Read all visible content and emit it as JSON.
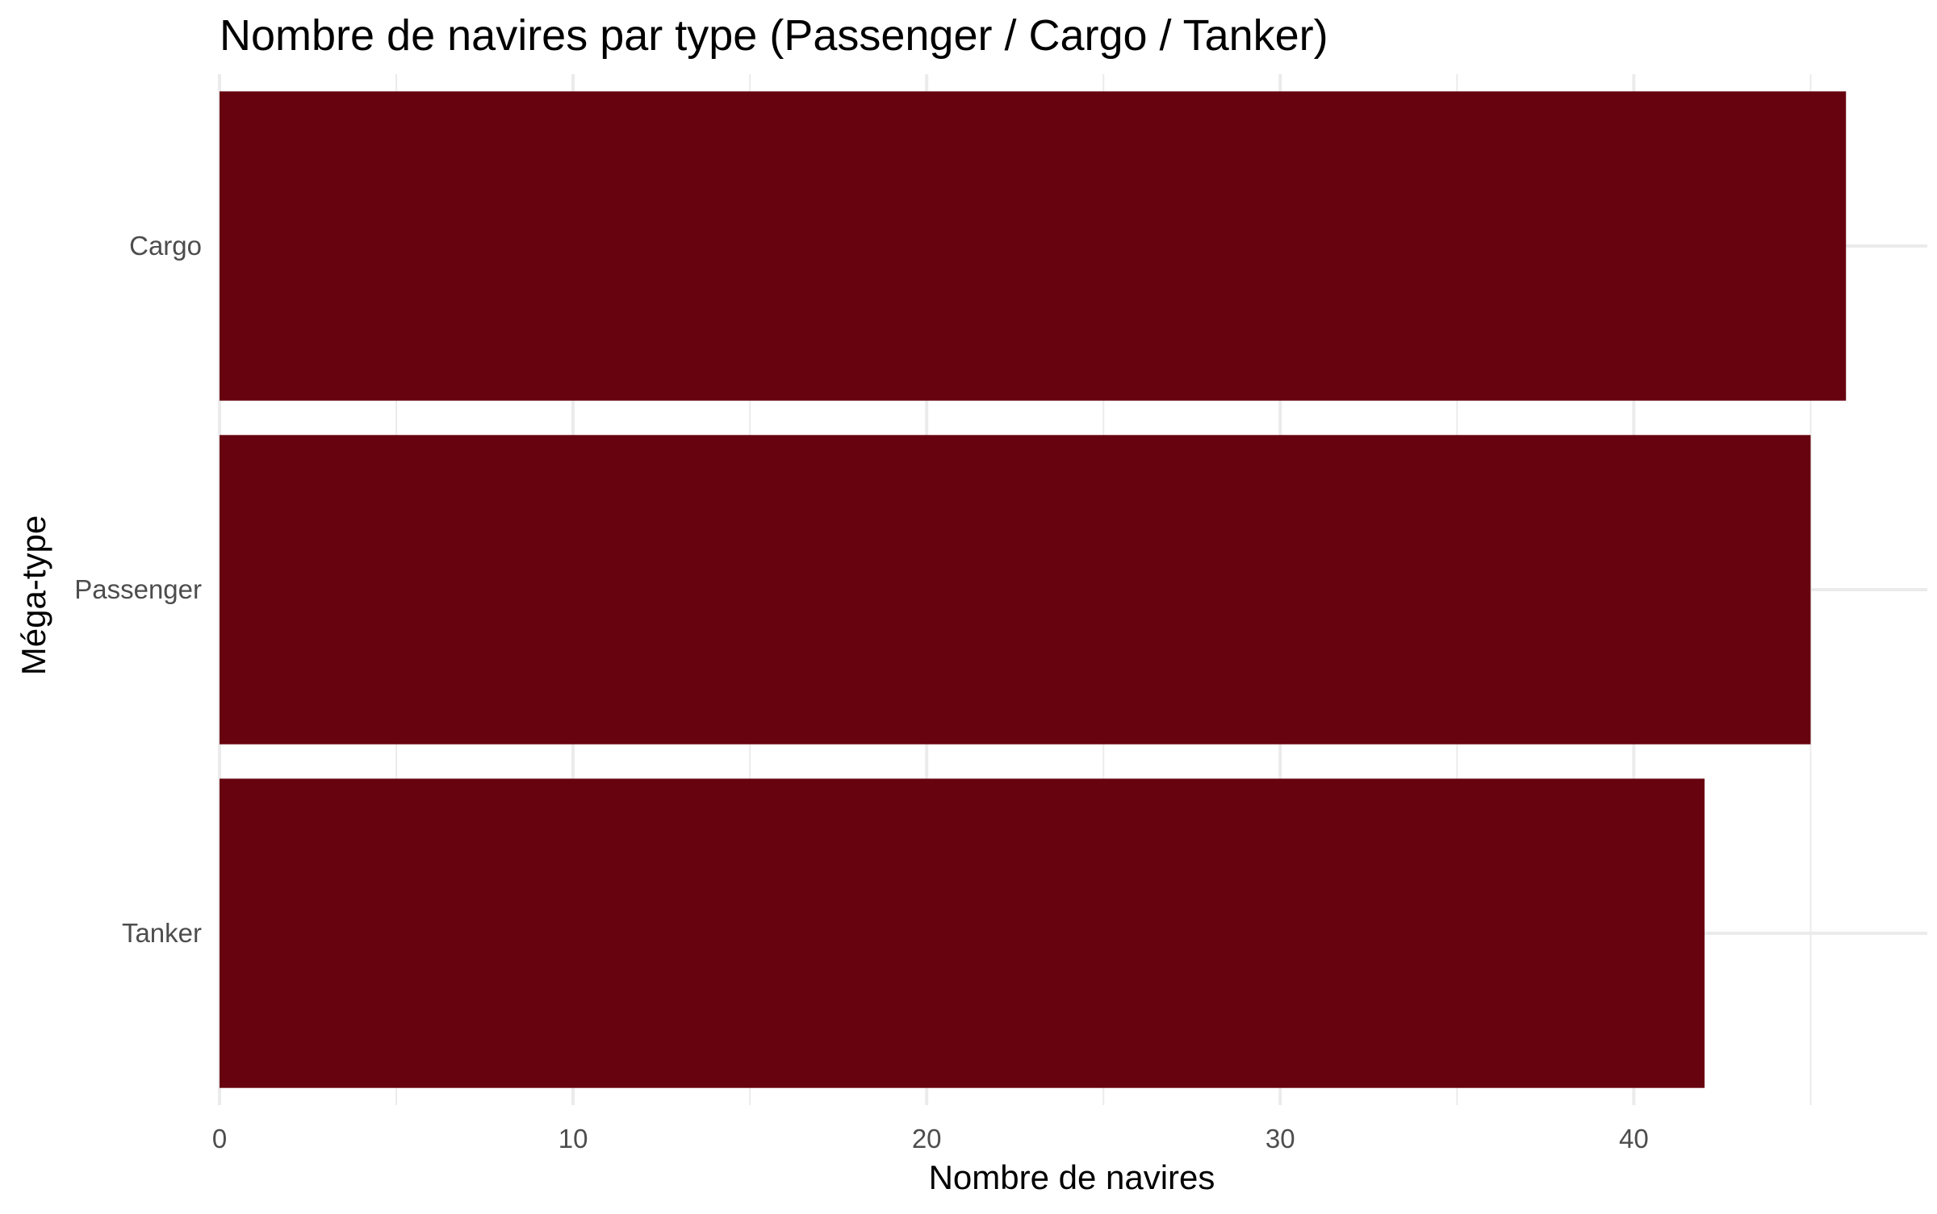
{
  "chart_data": {
    "type": "bar",
    "orientation": "horizontal",
    "title": "Nombre de navires par type (Passenger / Cargo / Tanker)",
    "xlabel": "Nombre de navires",
    "ylabel": "Méga-type",
    "categories": [
      "Cargo",
      "Passenger",
      "Tanker"
    ],
    "values": [
      46,
      45,
      42
    ],
    "xlim": [
      0,
      48.3
    ],
    "xticks": [
      0,
      10,
      20,
      30,
      40
    ],
    "x_minor_ticks": [
      5,
      15,
      25,
      35,
      45
    ],
    "grid": true,
    "legend": "none",
    "bar_color": "#67030f",
    "grid_color": "#ebebeb"
  }
}
